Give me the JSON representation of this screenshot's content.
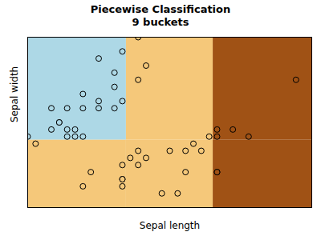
{
  "chart_data": {
    "type": "scatter",
    "title": "Piecewise Classification\n9 buckets",
    "xlabel": "Sepal length",
    "ylabel": "Sepal width",
    "xlim": [
      4.3,
      7.9
    ],
    "ylim": [
      2.0,
      4.4
    ],
    "tick_labels": false,
    "grid": false,
    "marker": "circle",
    "x_boundaries": [
      5.55,
      6.65
    ],
    "y_boundary": 2.95,
    "region_colors": [
      [
        "#add8e6",
        "#f5c87a",
        "#a05215"
      ],
      [
        "#f5c87a",
        "#f5c87a",
        "#a05215"
      ]
    ],
    "x": [
      4.9,
      4.7,
      4.6,
      5.0,
      5.4,
      4.6,
      5.0,
      4.9,
      5.4,
      4.8,
      4.8,
      4.4,
      4.3,
      5.0,
      5.2,
      5.2,
      4.7,
      4.8,
      5.4,
      5.2,
      5.7,
      5.8,
      5.7,
      5.5,
      5.5,
      5.1,
      5.0,
      5.5,
      5.6,
      5.7,
      5.5,
      5.5,
      5.8,
      5.7,
      6.0,
      6.2,
      5.5,
      6.3,
      6.5,
      6.3,
      6.1,
      6.4,
      6.6,
      6.7,
      6.7,
      7.7,
      6.7,
      6.7,
      6.9,
      7.1
    ],
    "values": [
      3.0,
      3.2,
      3.1,
      3.6,
      3.9,
      3.4,
      3.4,
      3.1,
      3.7,
      3.4,
      3.0,
      2.9,
      3.0,
      3.0,
      3.5,
      3.4,
      3.2,
      3.1,
      3.4,
      4.1,
      4.4,
      4.0,
      3.8,
      3.5,
      4.2,
      2.5,
      2.3,
      2.3,
      2.7,
      2.6,
      2.4,
      2.4,
      2.7,
      2.8,
      2.2,
      2.2,
      2.6,
      2.5,
      2.8,
      2.8,
      2.8,
      2.9,
      3.0,
      3.1,
      3.0,
      3.8,
      2.5,
      2.5,
      3.1,
      3.0
    ],
    "colors": [
      "#add8e6",
      "#add8e6",
      "#add8e6",
      "#add8e6",
      "#add8e6",
      "#add8e6",
      "#add8e6",
      "#add8e6",
      "#add8e6",
      "#add8e6",
      "#add8e6",
      "#f5c87a",
      "#add8e6",
      "#add8e6",
      "#add8e6",
      "#add8e6",
      "#add8e6",
      "#add8e6",
      "#add8e6",
      "#add8e6",
      "#f5c87a",
      "#f5c87a",
      "#f5c87a",
      "#add8e6",
      "#add8e6",
      "#f5c87a",
      "#f5c87a",
      "#f5c87a",
      "#f5c87a",
      "#f5c87a",
      "#f5c87a",
      "#f5c87a",
      "#f5c87a",
      "#f5c87a",
      "#f5c87a",
      "#f5c87a",
      "#f5c87a",
      "#f5c87a",
      "#f5c87a",
      "#f5c87a",
      "#f5c87a",
      "#f5c87a",
      "#f5c87a",
      "#a05215",
      "#a05215",
      "#a05215",
      "#a05215",
      "#a05215",
      "#a05215",
      "#a05215"
    ]
  }
}
